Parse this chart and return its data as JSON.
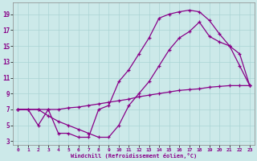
{
  "xlabel": "Windchill (Refroidissement éolien,°C)",
  "bg_color": "#cce9e9",
  "line_color": "#880088",
  "marker": "+",
  "xlim": [
    -0.5,
    23.5
  ],
  "ylim": [
    2.5,
    20.5
  ],
  "xticks": [
    0,
    1,
    2,
    3,
    4,
    5,
    6,
    7,
    8,
    9,
    10,
    11,
    12,
    13,
    14,
    15,
    16,
    17,
    18,
    19,
    20,
    21,
    22,
    23
  ],
  "yticks": [
    3,
    5,
    7,
    9,
    11,
    13,
    15,
    17,
    19
  ],
  "line1_x": [
    0,
    1,
    2,
    3,
    4,
    5,
    6,
    7,
    8,
    9,
    10,
    11,
    12,
    13,
    14,
    15,
    16,
    17,
    18,
    19,
    20,
    21,
    22,
    23
  ],
  "line1_y": [
    7.0,
    7.0,
    7.0,
    7.0,
    7.0,
    7.2,
    7.3,
    7.5,
    7.7,
    7.9,
    8.1,
    8.3,
    8.6,
    8.8,
    9.0,
    9.2,
    9.4,
    9.5,
    9.6,
    9.8,
    9.9,
    10.0,
    10.0,
    10.0
  ],
  "line2_x": [
    0,
    1,
    2,
    3,
    4,
    5,
    6,
    7,
    8,
    9,
    10,
    11,
    12,
    13,
    14,
    15,
    16,
    17,
    18,
    19,
    20,
    21,
    22,
    23
  ],
  "line2_y": [
    7.0,
    7.0,
    5.0,
    7.0,
    4.0,
    4.0,
    3.5,
    3.5,
    7.0,
    7.5,
    10.5,
    12.0,
    14.0,
    16.0,
    18.5,
    19.0,
    19.3,
    19.5,
    19.3,
    18.2,
    16.5,
    15.0,
    12.5,
    10.0
  ],
  "line3_x": [
    0,
    2,
    3,
    4,
    5,
    6,
    7,
    8,
    9,
    10,
    11,
    12,
    13,
    14,
    15,
    16,
    17,
    18,
    19,
    20,
    21,
    22,
    23
  ],
  "line3_y": [
    7.0,
    7.0,
    6.2,
    5.5,
    5.0,
    4.5,
    4.0,
    3.5,
    3.5,
    5.0,
    7.5,
    9.0,
    10.5,
    12.5,
    14.5,
    16.0,
    16.8,
    18.0,
    16.2,
    15.5,
    15.0,
    14.0,
    10.0
  ]
}
